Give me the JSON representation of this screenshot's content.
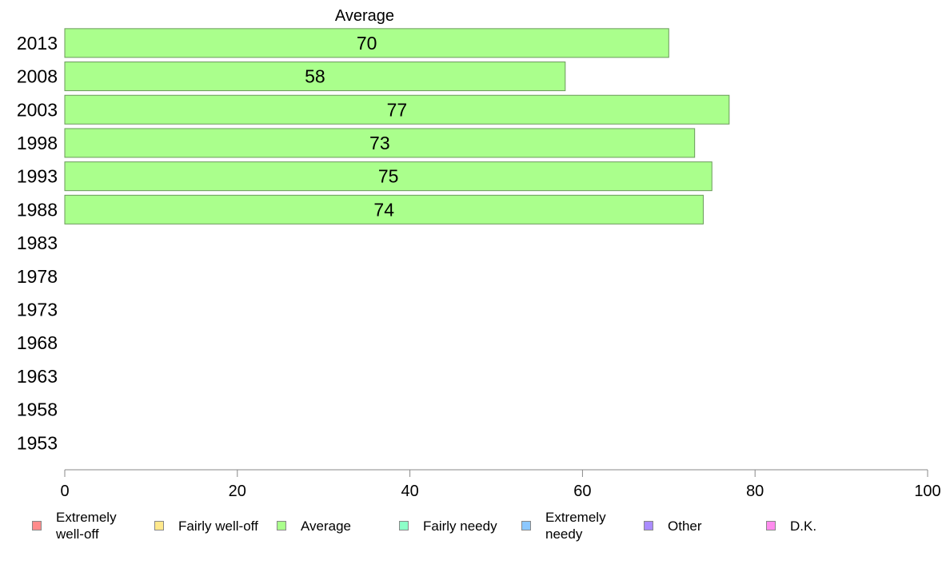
{
  "chart_data": {
    "type": "bar",
    "orientation": "horizontal",
    "title": "Average",
    "categories": [
      "2013",
      "2008",
      "2003",
      "1998",
      "1993",
      "1988",
      "1983",
      "1978",
      "1973",
      "1968",
      "1963",
      "1958",
      "1953"
    ],
    "series": [
      {
        "name": "Average",
        "color": "#aaff8c",
        "values": [
          70,
          58,
          77,
          73,
          75,
          74,
          null,
          null,
          null,
          null,
          null,
          null,
          null
        ]
      }
    ],
    "data_labels": [
      "70",
      "58",
      "77",
      "73",
      "75",
      "74"
    ],
    "xlim": [
      0,
      100
    ],
    "xticks": [
      "0",
      "20",
      "40",
      "60",
      "80",
      "100"
    ],
    "grid": false,
    "legend_position": "bottom"
  },
  "legend": [
    {
      "label": "Extremely\nwell-off",
      "color": "#ff8c8c"
    },
    {
      "label": "Fairly well-off",
      "color": "#ffe88c"
    },
    {
      "label": "Average",
      "color": "#aaff8c"
    },
    {
      "label": "Fairly needy",
      "color": "#8cffc8"
    },
    {
      "label": "Extremely\nneedy",
      "color": "#8cc8ff"
    },
    {
      "label": "Other",
      "color": "#aa8cff"
    },
    {
      "label": "D.K.",
      "color": "#ff8cee"
    }
  ]
}
